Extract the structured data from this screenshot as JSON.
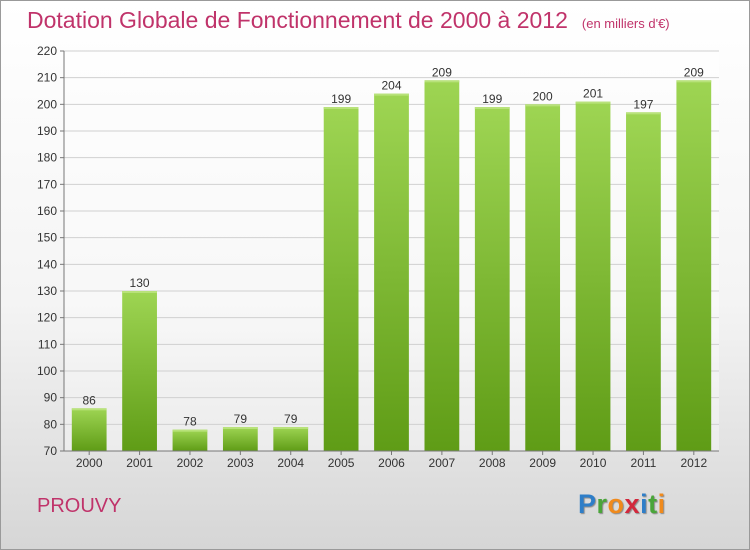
{
  "title": "Dotation Globale de Fonctionnement de 2000 à 2012",
  "subtitle": "(en milliers d'€)",
  "commune": "PROUVY",
  "logo": {
    "text": "Proxiti",
    "letters": [
      {
        "char": "P",
        "color": "#2e7ec8"
      },
      {
        "char": "r",
        "color": "#4aa53a"
      },
      {
        "char": "o",
        "color": "#f08a1c"
      },
      {
        "char": "x",
        "color": "#d2283c"
      },
      {
        "char": "i",
        "color": "#2e7ec8"
      },
      {
        "char": "t",
        "color": "#4aa53a"
      },
      {
        "char": "i",
        "color": "#f08a1c"
      }
    ]
  },
  "chart_data": {
    "type": "bar",
    "title": "Dotation Globale de Fonctionnement de 2000 à 2012",
    "subtitle": "(en milliers d'€)",
    "categories": [
      "2000",
      "2001",
      "2002",
      "2003",
      "2004",
      "2005",
      "2006",
      "2007",
      "2008",
      "2009",
      "2010",
      "2011",
      "2012"
    ],
    "values": [
      86,
      130,
      78,
      79,
      79,
      199,
      204,
      209,
      199,
      200,
      201,
      197,
      209
    ],
    "ylim": [
      70,
      220
    ],
    "yticks": [
      70,
      80,
      90,
      100,
      110,
      120,
      130,
      140,
      150,
      160,
      170,
      180,
      190,
      200,
      210,
      220
    ],
    "grid": true,
    "bar_color": "#7bbf2e"
  }
}
